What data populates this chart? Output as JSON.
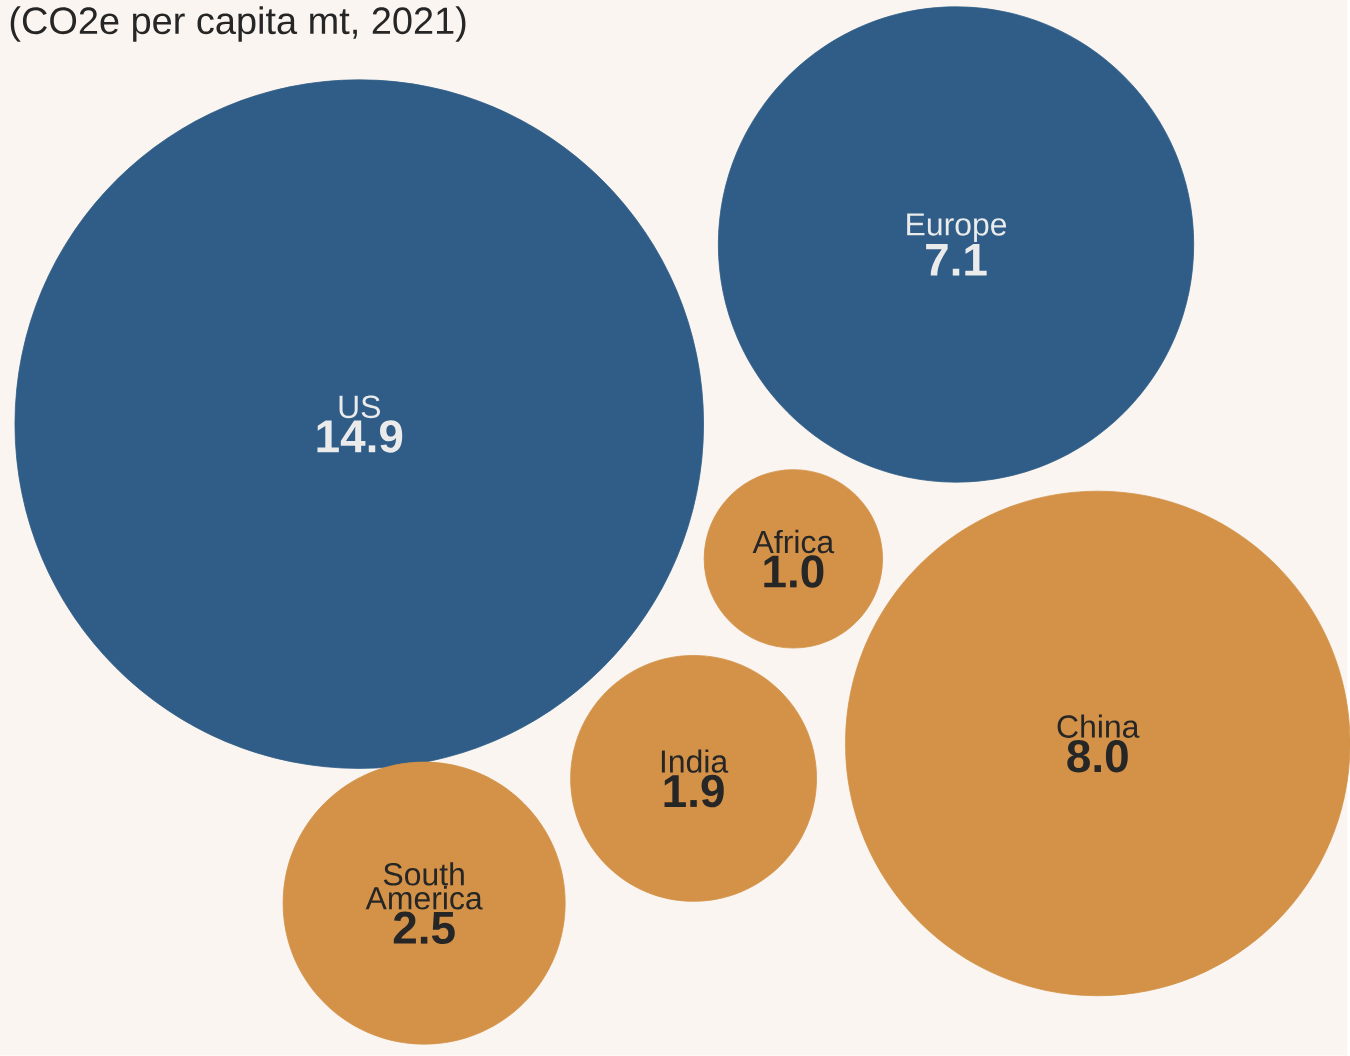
{
  "chart_data": {
    "type": "other",
    "title": "(CO2e per capita mt, 2021)",
    "categories": [
      "US",
      "Europe",
      "Africa",
      "China",
      "India",
      "South America"
    ],
    "values": [
      14.9,
      7.1,
      1.0,
      8.0,
      1.9,
      2.5
    ],
    "value_labels": [
      "14.9",
      "7.1",
      "1.0",
      "8.0",
      "1.9",
      "2.5"
    ],
    "colors": [
      "#2f5d87",
      "#2f5d87",
      "#d39248",
      "#d39248",
      "#d39248",
      "#d39248"
    ]
  }
}
